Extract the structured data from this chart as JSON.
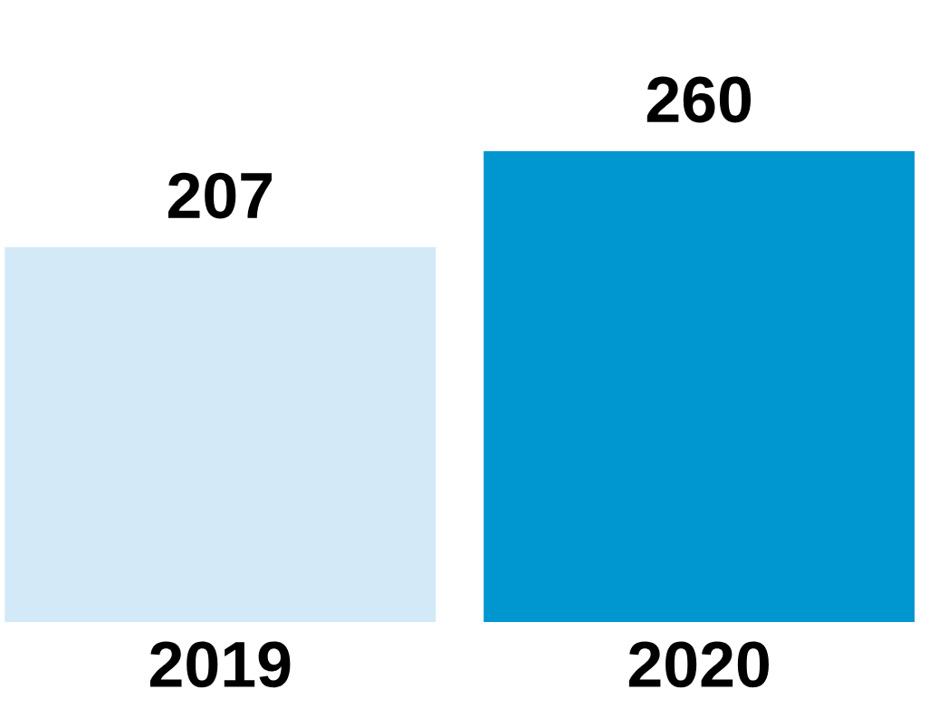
{
  "chart_data": {
    "type": "bar",
    "categories": [
      "2019",
      "2020"
    ],
    "values": [
      207,
      260
    ],
    "colors": [
      "#d4e9f7",
      "#0097d1"
    ],
    "data_labels": true
  }
}
